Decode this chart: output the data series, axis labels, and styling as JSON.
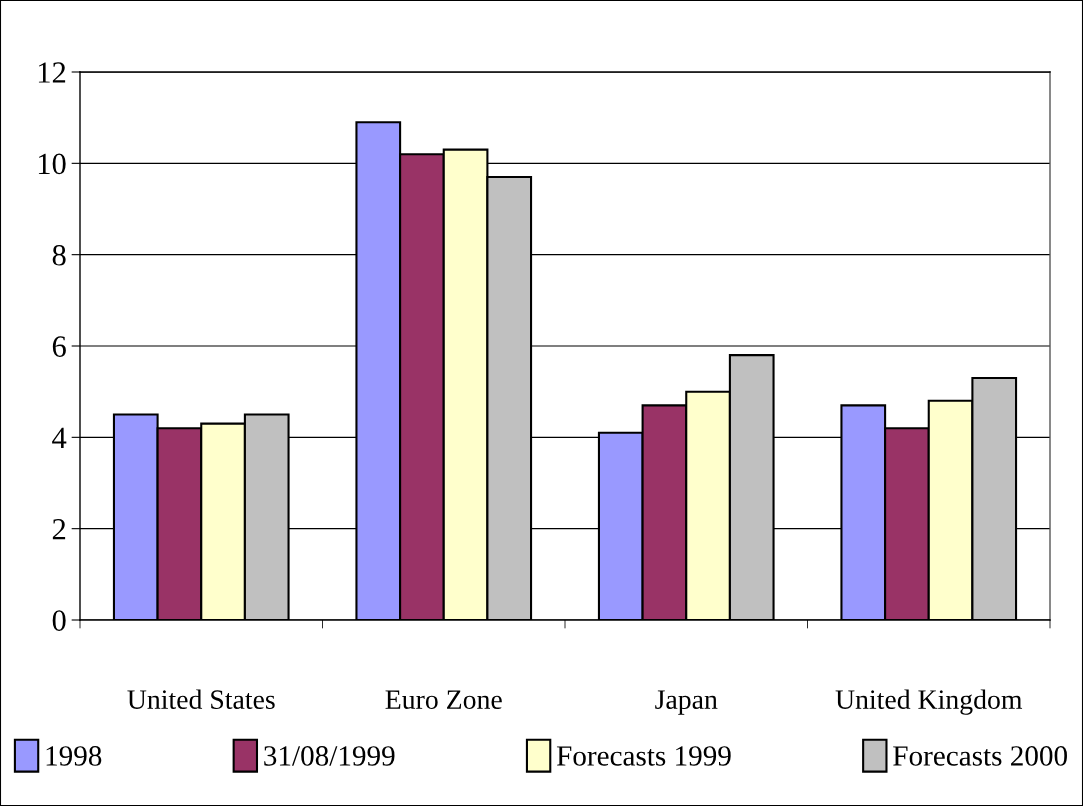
{
  "chart_data": {
    "type": "bar",
    "categories": [
      "United States",
      "Euro Zone",
      "Japan",
      "United Kingdom"
    ],
    "series": [
      {
        "name": "1998",
        "color": "#9999ff",
        "values": [
          4.5,
          10.9,
          4.1,
          4.7
        ]
      },
      {
        "name": "31/08/1999",
        "color": "#993366",
        "values": [
          4.2,
          10.2,
          4.7,
          4.2
        ]
      },
      {
        "name": "Forecasts 1999",
        "color": "#ffffcc",
        "values": [
          4.3,
          10.3,
          5.0,
          4.8
        ]
      },
      {
        "name": "Forecasts 2000",
        "color": "#c0c0c0",
        "values": [
          4.5,
          9.7,
          5.8,
          5.3
        ]
      }
    ],
    "ylim": [
      0,
      12
    ],
    "yticks": [
      0,
      2,
      4,
      6,
      8,
      10,
      12
    ],
    "grid": "y",
    "legend": "bottom"
  }
}
